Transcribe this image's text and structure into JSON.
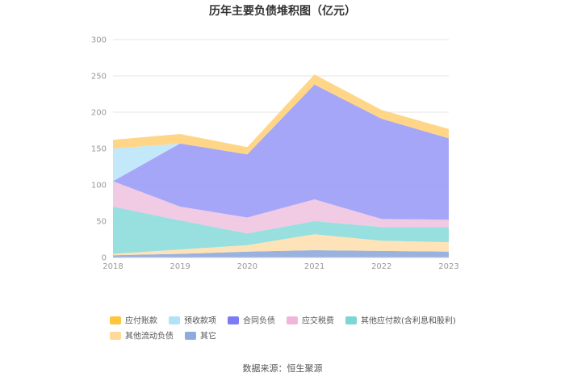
{
  "chart_data": {
    "type": "area",
    "stacked": true,
    "title": "历年主要负债堆积图（亿元）",
    "categories": [
      "2018",
      "2019",
      "2020",
      "2021",
      "2022",
      "2023"
    ],
    "ylim": [
      0,
      300
    ],
    "yticks": [
      "0",
      "50",
      "100",
      "150",
      "200",
      "250",
      "300"
    ],
    "grid": true,
    "legend_position": "bottom",
    "series": [
      {
        "name": "其它",
        "color": "#8FAADC",
        "values": [
          3,
          5,
          8,
          10,
          9,
          8
        ]
      },
      {
        "name": "其他流动负债",
        "color": "#FFE0B0",
        "values": [
          2,
          6,
          9,
          22,
          14,
          13
        ]
      },
      {
        "name": "其他应付款(含利息和股利)",
        "color": "#8DDCDC",
        "values": [
          65,
          40,
          16,
          18,
          19,
          21
        ]
      },
      {
        "name": "应交税费",
        "color": "#F0C4E0",
        "values": [
          35,
          19,
          22,
          30,
          11,
          10
        ]
      },
      {
        "name": "合同负债",
        "color": "#9C9CF8",
        "values": [
          0,
          87,
          87,
          158,
          138,
          112
        ]
      },
      {
        "name": "预收款项",
        "color": "#BCE6FA",
        "values": [
          45,
          0,
          0,
          0,
          0,
          0
        ]
      },
      {
        "name": "应付账款",
        "color": "#FFD27A",
        "values": [
          12,
          13,
          10,
          14,
          12,
          13
        ]
      }
    ],
    "legend_order": [
      "应付账款",
      "预收款项",
      "合同负债",
      "应交税费",
      "其他应付款(含利息和股利)",
      "其他流动负债",
      "其它"
    ],
    "legend_colors": {
      "应付账款": "#FFC53D",
      "预收款项": "#B0E3FA",
      "合同负债": "#7B7BF5",
      "应交税费": "#F0B6DA",
      "其他应付款(含利息和股利)": "#7DD6D6",
      "其他流动负债": "#FFD89A",
      "其它": "#8FAADC"
    }
  },
  "source_text": "数据来源：恒生聚源"
}
